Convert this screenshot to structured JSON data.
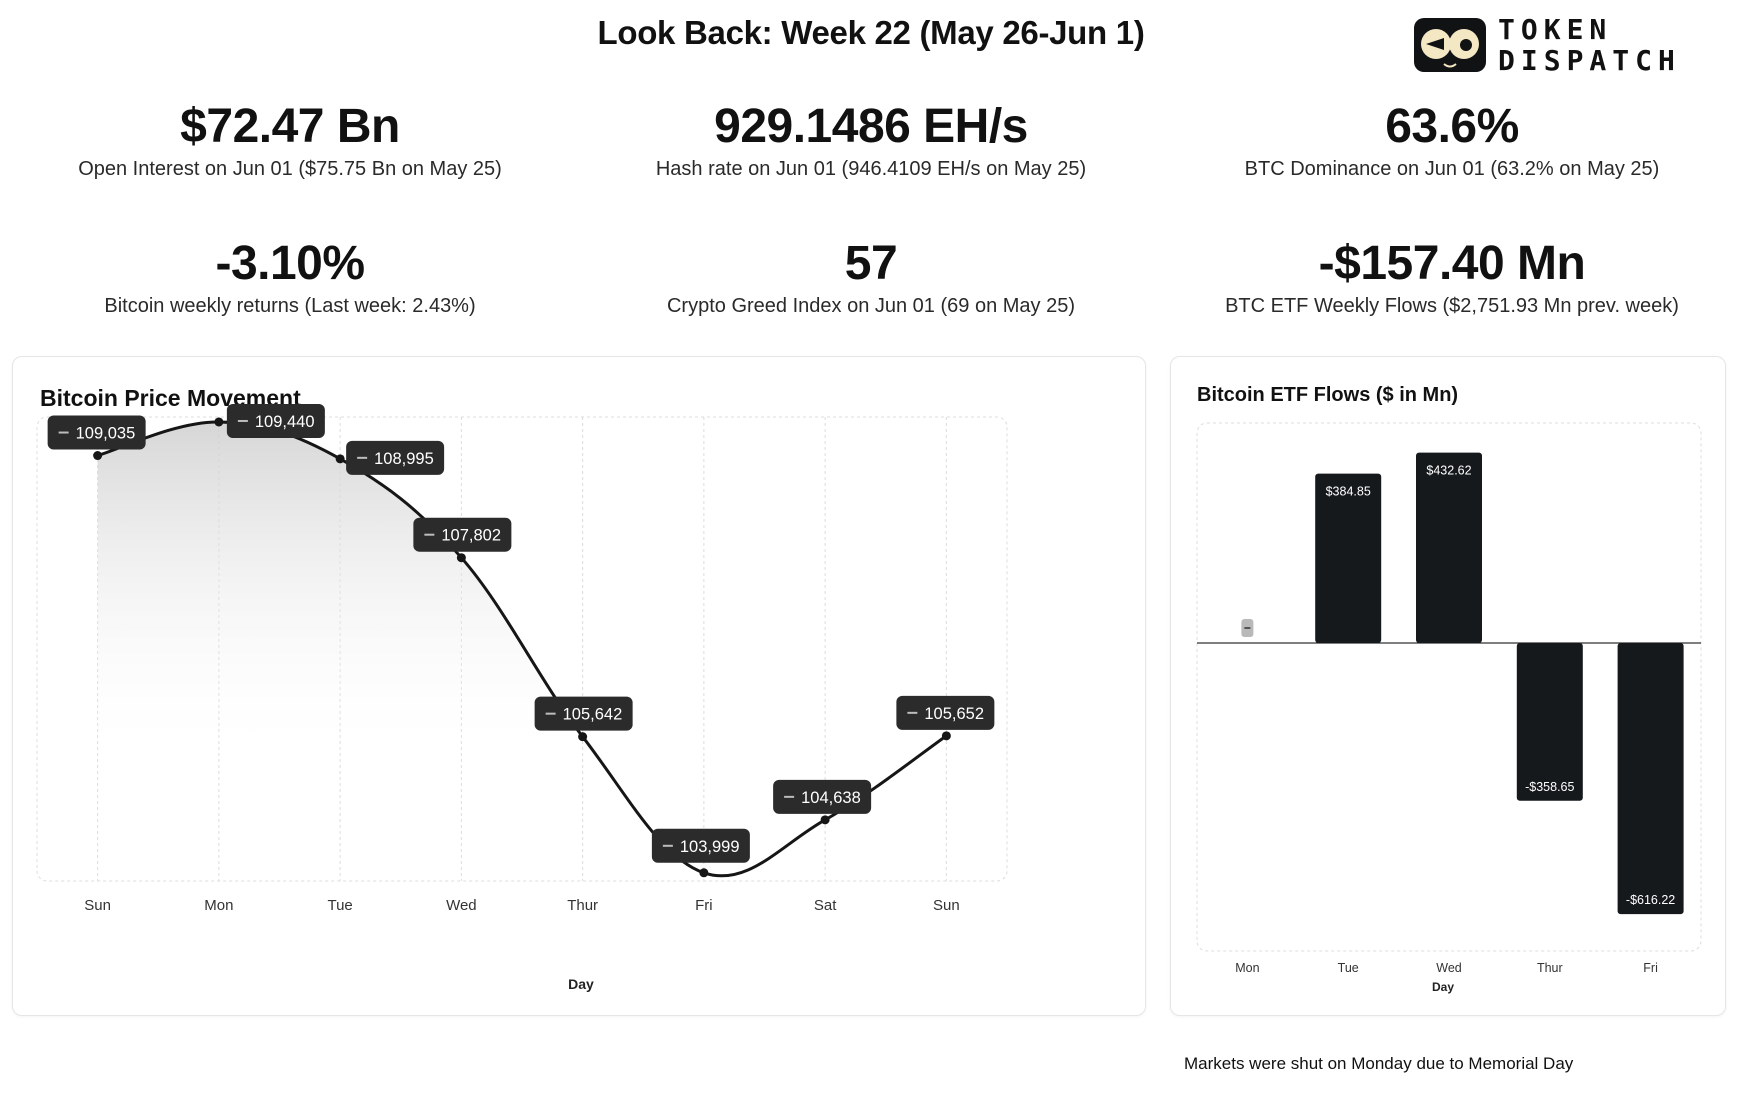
{
  "header": {
    "title": "Look Back: Week 22 (May 26-Jun 1)",
    "brand_line1": "TOKEN",
    "brand_line2": "DISPATCH"
  },
  "stats": [
    {
      "value": "$72.47 Bn",
      "label": "Open Interest on Jun 01 ($75.75 Bn on May 25)"
    },
    {
      "value": "929.1486 EH/s",
      "label": "Hash rate on Jun 01 (946.4109 EH/s on May 25)"
    },
    {
      "value": "63.6%",
      "label": "BTC Dominance on Jun 01 (63.2% on May 25)"
    },
    {
      "value": "-3.10%",
      "label": "Bitcoin weekly returns (Last week: 2.43%)"
    },
    {
      "value": "57",
      "label": "Crypto Greed Index on Jun 01 (69 on May 25)"
    },
    {
      "value": "-$157.40 Mn",
      "label": "BTC ETF Weekly Flows ($2,751.93 Mn prev. week)"
    }
  ],
  "colors": {
    "line": "#161616",
    "bar": "#15191c",
    "tooltip": "#2b2b2b",
    "grid": "#dcdcdc"
  },
  "chart_data": [
    {
      "type": "line",
      "title": "Bitcoin Price Movement",
      "xlabel": "Day",
      "ylabel": "",
      "categories": [
        "Sun",
        "Mon",
        "Tue",
        "Wed",
        "Thur",
        "Fri",
        "Sat",
        "Sun"
      ],
      "values": [
        109035,
        109440,
        108995,
        107802,
        105642,
        103999,
        104638,
        105652
      ],
      "labels": [
        "109,035",
        "109,440",
        "108,995",
        "107,802",
        "105,642",
        "103,999",
        "104,638",
        "105,652"
      ],
      "ylim": [
        103900,
        109500
      ],
      "grid": true,
      "area_fill": true
    },
    {
      "type": "bar",
      "title": "Bitcoin ETF Flows ($ in Mn)",
      "xlabel": "Day",
      "ylabel": "",
      "categories": [
        "Mon",
        "Tue",
        "Wed",
        "Thur",
        "Fri"
      ],
      "values": [
        0,
        384.85,
        432.62,
        -358.65,
        -616.22
      ],
      "labels": [
        "",
        "$384.85",
        "$432.62",
        "-$358.65",
        "-$616.22"
      ],
      "ylim": [
        -700,
        500
      ],
      "grid": true
    }
  ],
  "footnote": "Markets were shut on Monday due to Memorial Day"
}
